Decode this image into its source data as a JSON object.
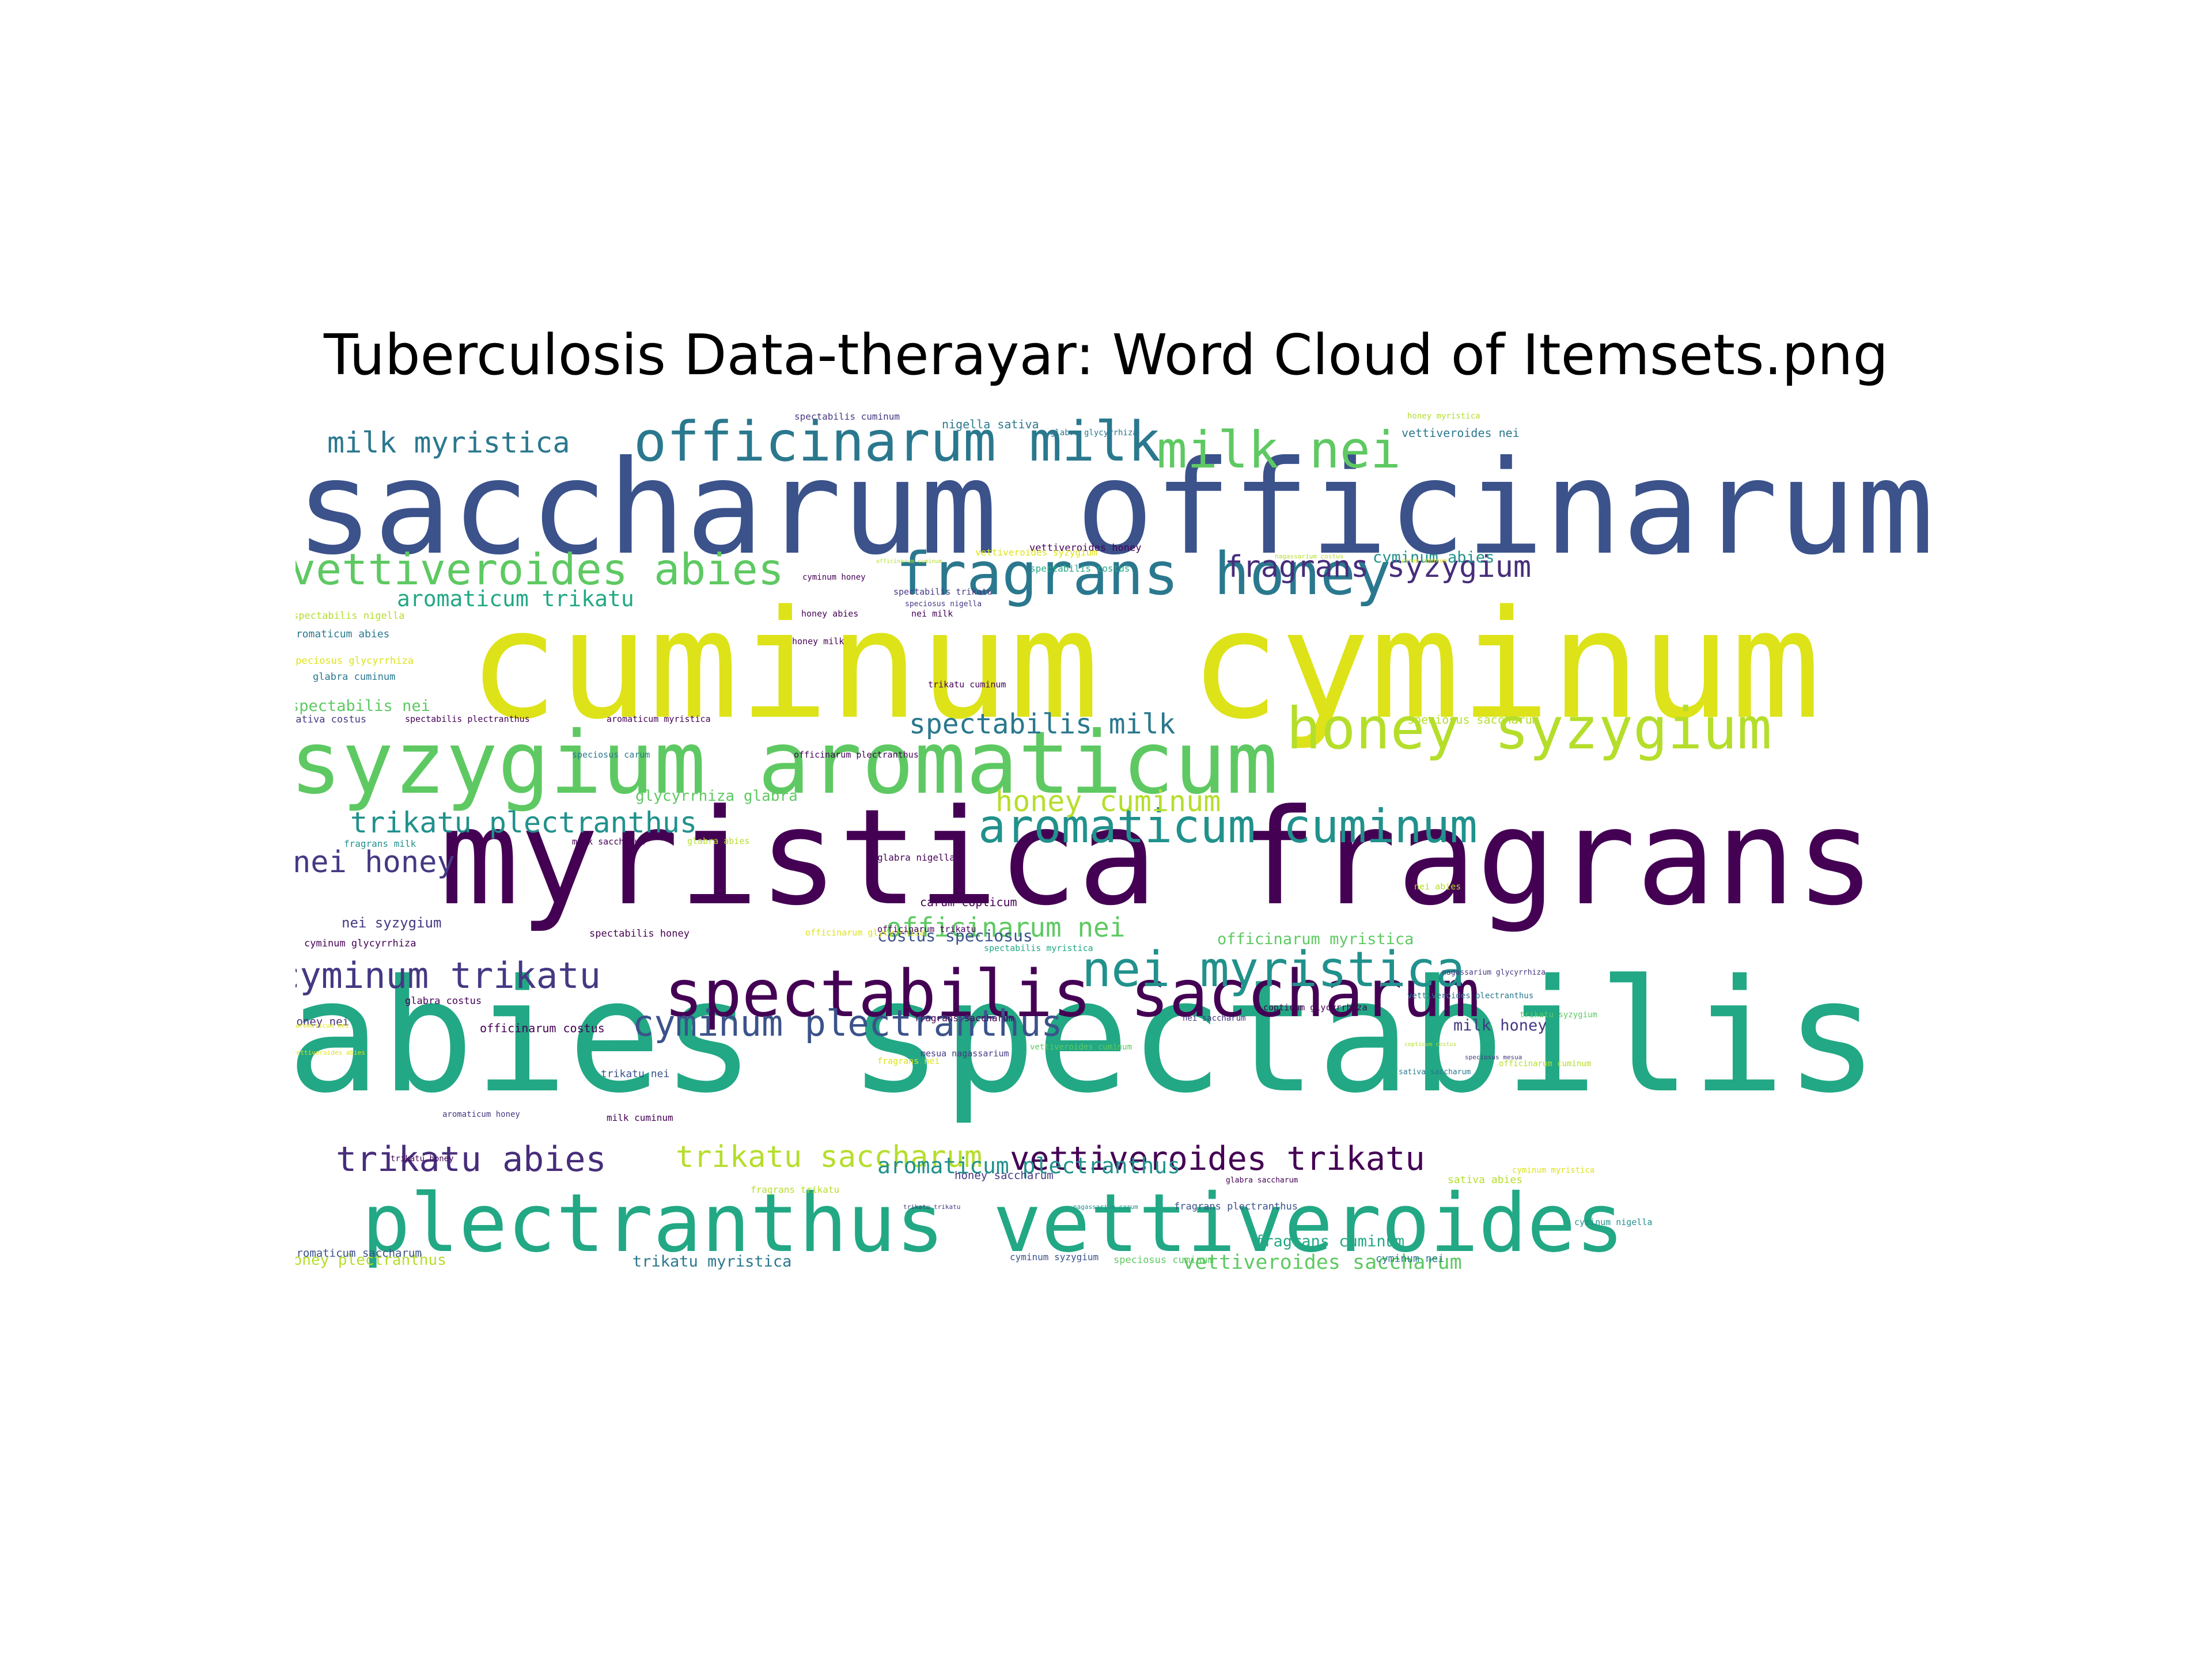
{
  "title": "Tuberculosis Data-therayar: Word Cloud of Itemsets.png",
  "palette": {
    "c1": "#3b528b",
    "c2": "#dde318",
    "c3": "#440154",
    "c4": "#22a884",
    "c5": "#5ec962",
    "c6": "#2a788e",
    "c7": "#472d7b",
    "c8": "#b5de2b",
    "c9": "#21918c",
    "c10": "#443983"
  },
  "words": [
    {
      "text": "saccharum officinarum",
      "color": "c1"
    },
    {
      "text": "cuminum cyminum",
      "color": "c2"
    },
    {
      "text": "myristica fragrans",
      "color": "c3"
    },
    {
      "text": "abies spectabilis",
      "color": "c4"
    },
    {
      "text": "syzygium aromaticum",
      "color": "c5"
    },
    {
      "text": "plectranthus vettiveroides",
      "color": "c4"
    },
    {
      "text": "spectabilis saccharum",
      "color": "c3"
    },
    {
      "text": "officinarum milk",
      "color": "c6"
    },
    {
      "text": "fragrans honey",
      "color": "c6"
    },
    {
      "text": "honey syzygium",
      "color": "c8"
    },
    {
      "text": "vettiveroides abies",
      "color": "c5"
    },
    {
      "text": "milk nei",
      "color": "c5"
    },
    {
      "text": "aromaticum cuminum",
      "color": "c9"
    },
    {
      "text": "nei myristica",
      "color": "c9"
    },
    {
      "text": "cyminum trikatu",
      "color": "c10"
    },
    {
      "text": "cyminum plectranthus",
      "color": "c1"
    },
    {
      "text": "milk myristica",
      "color": "c6"
    },
    {
      "text": "fragrans syzygium",
      "color": "c7"
    },
    {
      "text": "trikatu plectranthus",
      "color": "c9"
    },
    {
      "text": "nei honey",
      "color": "c10"
    },
    {
      "text": "honey cuminum",
      "color": "c8"
    },
    {
      "text": "spectabilis milk",
      "color": "c6"
    },
    {
      "text": "officinarum nei",
      "color": "c5"
    },
    {
      "text": "trikatu abies",
      "color": "c7"
    },
    {
      "text": "trikatu saccharum",
      "color": "c8"
    },
    {
      "text": "vettiveroides trikatu",
      "color": "c3"
    },
    {
      "text": "aromaticum plectranthus",
      "color": "c9"
    },
    {
      "text": "aromaticum trikatu",
      "color": "c4"
    },
    {
      "text": "vettiveroides saccharum",
      "color": "c5"
    },
    {
      "text": "costus speciosus",
      "color": "c1"
    },
    {
      "text": "officinarum myristica",
      "color": "c5"
    },
    {
      "text": "spectabilis nei",
      "color": "c5"
    },
    {
      "text": "glycyrrhiza glabra",
      "color": "c5"
    },
    {
      "text": "nei syzygium",
      "color": "c10"
    },
    {
      "text": "fragrans cuminum",
      "color": "c4"
    },
    {
      "text": "cyminum abies",
      "color": "c9"
    },
    {
      "text": "trikatu myristica",
      "color": "c6"
    },
    {
      "text": "honey plectranthus",
      "color": "c8"
    },
    {
      "text": "milk honey",
      "color": "c10"
    },
    {
      "text": "nigella sativa",
      "color": "c6"
    },
    {
      "text": "spectabilis cuminum",
      "color": "c10"
    },
    {
      "text": "vettiveroides nei",
      "color": "c6"
    },
    {
      "text": "spectabilis costus",
      "color": "c4"
    },
    {
      "text": "vettiveroides honey",
      "color": "c3"
    },
    {
      "text": "vettiveroides syzygium",
      "color": "c2"
    },
    {
      "text": "speciosus saccharum",
      "color": "c8"
    },
    {
      "text": "fragrans plectranthus",
      "color": "c1"
    },
    {
      "text": "fragrans saccharum",
      "color": "c3"
    },
    {
      "text": "officinarum costus",
      "color": "c3"
    },
    {
      "text": "aromaticum saccharum",
      "color": "c1"
    },
    {
      "text": "cyminum syzygium",
      "color": "c1"
    },
    {
      "text": "speciosus cuminum",
      "color": "c5"
    },
    {
      "text": "cyminum nei",
      "color": "c6"
    },
    {
      "text": "milk cuminum",
      "color": "c3"
    },
    {
      "text": "trikatu nei",
      "color": "c1"
    },
    {
      "text": "honey saccharum",
      "color": "c10"
    },
    {
      "text": "fragrans trikatu",
      "color": "c8"
    },
    {
      "text": "sativa abies",
      "color": "c8"
    },
    {
      "text": "glabra nigella",
      "color": "c3"
    },
    {
      "text": "carum copticum",
      "color": "c3"
    },
    {
      "text": "spectabilis honey",
      "color": "c3"
    },
    {
      "text": "cyminum glycyrrhiza",
      "color": "c3"
    },
    {
      "text": "honey nei",
      "color": "c7"
    },
    {
      "text": "glabra costus",
      "color": "c3"
    },
    {
      "text": "spectabilis nigella",
      "color": "c8"
    },
    {
      "text": "aromaticum abies",
      "color": "c6"
    },
    {
      "text": "speciosus glycyrrhiza",
      "color": "c2"
    },
    {
      "text": "glabra cuminum",
      "color": "c6"
    },
    {
      "text": "sativa costus",
      "color": "c10"
    },
    {
      "text": "spectabilis plectranthus",
      "color": "c3"
    },
    {
      "text": "speciosus carum",
      "color": "c6"
    },
    {
      "text": "fragrans milk",
      "color": "c9"
    },
    {
      "text": "milk saccharum",
      "color": "c3"
    },
    {
      "text": "aromaticum myristica",
      "color": "c3"
    },
    {
      "text": "officinarum plectranthus",
      "color": "c3"
    },
    {
      "text": "officinarum glycyrrhiza",
      "color": "c2"
    },
    {
      "text": "officinarum trikatu",
      "color": "c3"
    },
    {
      "text": "spectabilis myristica",
      "color": "c4"
    },
    {
      "text": "copticum glycyrrhiza",
      "color": "c3"
    },
    {
      "text": "glabra abies",
      "color": "c8"
    },
    {
      "text": "nei abies",
      "color": "c8"
    },
    {
      "text": "honey milk",
      "color": "c3"
    },
    {
      "text": "honey abies",
      "color": "c3"
    },
    {
      "text": "nei milk",
      "color": "c3"
    },
    {
      "text": "trikatu cuminum",
      "color": "c3"
    },
    {
      "text": "cyminum honey",
      "color": "c3"
    },
    {
      "text": "aromaticum honey",
      "color": "c10"
    },
    {
      "text": "nei saccharum",
      "color": "c10"
    },
    {
      "text": "mesua nagassarium",
      "color": "c10"
    },
    {
      "text": "spectabilis trikatu",
      "color": "c10"
    },
    {
      "text": "speciosus nigella",
      "color": "c10"
    },
    {
      "text": "glabra glycyrrhiza",
      "color": "c6"
    },
    {
      "text": "honey myristica",
      "color": "c8"
    },
    {
      "text": "vettiveroides plectranthus",
      "color": "c6"
    },
    {
      "text": "officinarum cuminum",
      "color": "c8"
    },
    {
      "text": "vettiveroides cuminum",
      "color": "c5"
    },
    {
      "text": "sativa saccharum",
      "color": "c6"
    },
    {
      "text": "cyminum nigella",
      "color": "c9"
    },
    {
      "text": "trikatu syzygium",
      "color": "c5"
    },
    {
      "text": "trikatu honey",
      "color": "c3"
    },
    {
      "text": "cyminum myristica",
      "color": "c2"
    },
    {
      "text": "nagassarium glycyrrhiza",
      "color": "c10"
    },
    {
      "text": "glabra saccharum",
      "color": "c3"
    },
    {
      "text": "fragrans nei",
      "color": "c2"
    },
    {
      "text": "aromaticum nei",
      "color": "c2"
    },
    {
      "text": "trikatu trikatu",
      "color": "c10"
    },
    {
      "text": "nagassarium carum",
      "color": "c9"
    },
    {
      "text": "officinarum cuminum",
      "color": "c8"
    },
    {
      "text": "nagassarium costus",
      "color": "c8"
    },
    {
      "text": "speciosus mesua",
      "color": "c10"
    },
    {
      "text": "vettiveroides abies",
      "color": "c2"
    },
    {
      "text": "copticum costus",
      "color": "c8"
    },
    {
      "text": "carum cuminum",
      "color": "c2"
    }
  ]
}
